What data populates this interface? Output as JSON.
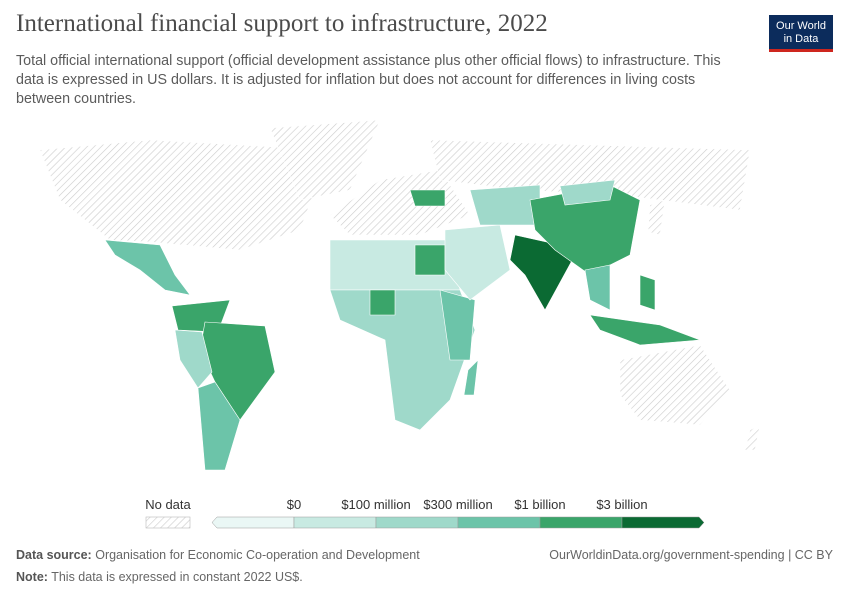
{
  "header": {
    "title": "International financial support to infrastructure, 2022",
    "subtitle": "Total official international support (official development assistance plus other official flows) to infrastructure. This data is expressed in US dollars. It is adjusted for inflation but does not account for differences in living costs between countries.",
    "logo": [
      "Our World",
      "in Data"
    ]
  },
  "legend": {
    "no_data": "No data",
    "labels": [
      "$0",
      "$100 million",
      "$300 million",
      "$1 billion",
      "$3 billion"
    ],
    "colors": [
      "#eaf7f5",
      "#c8eae2",
      "#9fd9ca",
      "#6cc4a9",
      "#3aa56a",
      "#0b6a33"
    ]
  },
  "footer": {
    "source_label": "Data source:",
    "source": "Organisation for Economic Co-operation and Development",
    "url": "OurWorldinData.org/government-spending | CC BY",
    "note_label": "Note:",
    "note": "This data is expressed in constant 2022 US$."
  }
}
